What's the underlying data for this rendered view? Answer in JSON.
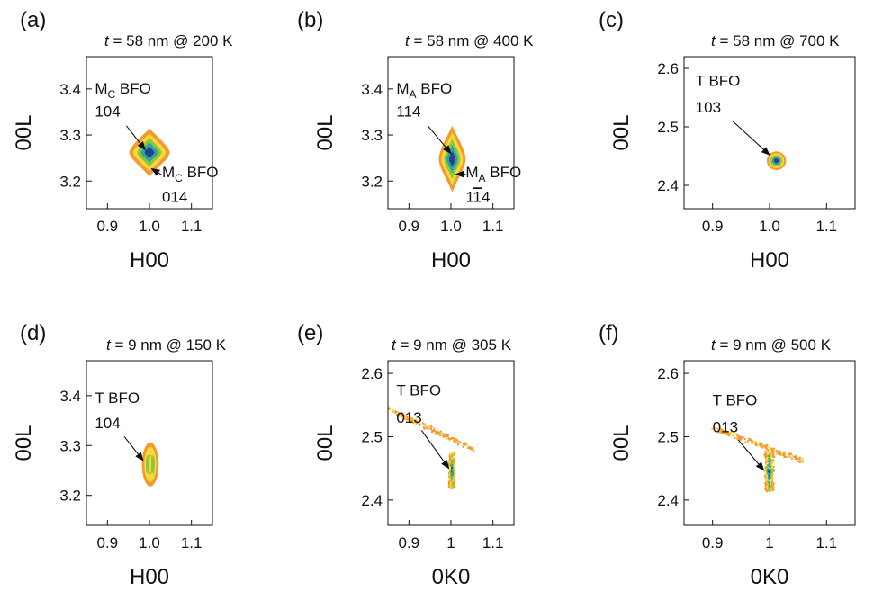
{
  "chart_data": [
    {
      "type": "heatmap",
      "panel_label": "(a)",
      "title": "t = 58 nm @ 200 K",
      "title_var": "t",
      "title_rest": " = 58 nm @ 200 K",
      "xlabel": "H00",
      "ylabel": "00L",
      "xlim": [
        0.85,
        1.15
      ],
      "ylim": [
        3.14,
        3.47
      ],
      "xticks": [
        0.9,
        1.0,
        1.1
      ],
      "xtick_labels": [
        "0.9",
        "1.0",
        "1.1"
      ],
      "yticks": [
        3.2,
        3.3,
        3.4
      ],
      "ytick_labels": [
        "3.2",
        "3.3",
        "3.4"
      ],
      "peaks": [
        {
          "x": 1.0,
          "y": 3.262,
          "rx": 0.048,
          "ry": 0.052,
          "shape": "diamond"
        }
      ],
      "annotations": [
        {
          "base": "M",
          "sub": "C",
          "rest": " BFO",
          "index": "104",
          "tx": 0.87,
          "ty": 3.39,
          "ix": 0.87,
          "iy": 3.34,
          "ax0": 0.945,
          "ay0": 3.32,
          "ax1": 0.99,
          "ay1": 3.268
        },
        {
          "base": "M",
          "sub": "C",
          "rest": " BFO",
          "index": "014",
          "tx": 1.03,
          "ty": 3.208,
          "ix": 1.03,
          "iy": 3.155,
          "ax0": 1.03,
          "ay0": 3.213,
          "ax1": 1.005,
          "ay1": 3.227
        }
      ]
    },
    {
      "type": "heatmap",
      "panel_label": "(b)",
      "title": "t = 58 nm @ 400 K",
      "title_var": "t",
      "title_rest": " = 58 nm @ 400 K",
      "xlabel": "H00",
      "ylabel": "00L",
      "xlim": [
        0.85,
        1.15
      ],
      "ylim": [
        3.14,
        3.47
      ],
      "xticks": [
        0.9,
        1.0,
        1.1
      ],
      "xtick_labels": [
        "0.9",
        "1.0",
        "1.1"
      ],
      "yticks": [
        3.2,
        3.3,
        3.4
      ],
      "ytick_labels": [
        "3.2",
        "3.3",
        "3.4"
      ],
      "peaks": [
        {
          "x": 1.003,
          "y": 3.248,
          "rx": 0.032,
          "ry": 0.072,
          "shape": "diamond"
        }
      ],
      "annotations": [
        {
          "base": "M",
          "sub": "A",
          "rest": " BFO",
          "index": "114",
          "tx": 0.87,
          "ty": 3.39,
          "ix": 0.87,
          "iy": 3.34,
          "ax0": 0.945,
          "ay0": 3.32,
          "ax1": 1.0,
          "ay1": 3.26
        },
        {
          "base": "M",
          "sub": "A",
          "rest": " BFO",
          "index": "1̄14",
          "index_parts": [
            "1",
            "1",
            "4"
          ],
          "index_bar": 1,
          "tx": 1.035,
          "ty": 3.208,
          "ix": 1.035,
          "iy": 3.155,
          "ax0": 1.035,
          "ay0": 3.215,
          "ax1": 1.012,
          "ay1": 3.215
        }
      ]
    },
    {
      "type": "heatmap",
      "panel_label": "(c)",
      "title": "t = 58 nm @ 700 K",
      "title_var": "t",
      "title_rest": " = 58 nm @ 700 K",
      "xlabel": "H00",
      "ylabel": "00L",
      "xlim": [
        0.85,
        1.15
      ],
      "ylim": [
        2.36,
        2.62
      ],
      "xticks": [
        0.9,
        1.0,
        1.1
      ],
      "xtick_labels": [
        "0.9",
        "1.0",
        "1.1"
      ],
      "yticks": [
        2.4,
        2.5,
        2.6
      ],
      "ytick_labels": [
        "2.4",
        "2.5",
        "2.6"
      ],
      "peaks": [
        {
          "x": 1.012,
          "y": 2.442,
          "rx": 0.017,
          "ry": 0.016,
          "shape": "ellipse"
        }
      ],
      "annotations": [
        {
          "text": "T BFO",
          "index": "103",
          "tx": 0.87,
          "ty": 2.57,
          "ix": 0.87,
          "iy": 2.525,
          "ax0": 0.935,
          "ay0": 2.51,
          "ax1": 1.0,
          "ay1": 2.452
        }
      ]
    },
    {
      "type": "heatmap",
      "panel_label": "(d)",
      "title": "t = 9 nm @ 150 K",
      "title_var": "t",
      "title_rest": "  = 9 nm @ 150 K",
      "xlabel": "H00",
      "ylabel": "00L",
      "xlim": [
        0.85,
        1.15
      ],
      "ylim": [
        3.14,
        3.47
      ],
      "xticks": [
        0.9,
        1.0,
        1.1
      ],
      "xtick_labels": [
        "0.9",
        "1.0",
        "1.1"
      ],
      "yticks": [
        3.2,
        3.3,
        3.4
      ],
      "ytick_labels": [
        "3.2",
        "3.3",
        "3.4"
      ],
      "peaks": [
        {
          "x": 1.002,
          "y": 3.262,
          "rx": 0.02,
          "ry": 0.044,
          "shape": "double"
        }
      ],
      "annotations": [
        {
          "text": "T BFO",
          "index": "104",
          "tx": 0.87,
          "ty": 3.385,
          "ix": 0.87,
          "iy": 3.335,
          "ax0": 0.94,
          "ay0": 3.318,
          "ax1": 0.985,
          "ay1": 3.27
        }
      ]
    },
    {
      "type": "heatmap",
      "panel_label": "(e)",
      "title": "t = 9 nm @ 305 K",
      "title_var": "t",
      "title_rest": " = 9 nm @ 305 K",
      "xlabel": "0K0",
      "ylabel": "00L",
      "xlim": [
        0.85,
        1.15
      ],
      "ylim": [
        2.36,
        2.62
      ],
      "xticks": [
        0.9,
        1.0,
        1.1
      ],
      "xtick_labels": [
        "0.9",
        "1",
        "1.1"
      ],
      "yticks": [
        2.4,
        2.5,
        2.6
      ],
      "ytick_labels": [
        "2.4",
        "2.5",
        "2.6"
      ],
      "peaks": [
        {
          "x": 1.0,
          "y": 2.447,
          "rx": 0.007,
          "ry": 0.028,
          "shape": "speckle"
        }
      ],
      "streaks": [
        {
          "x0": 0.85,
          "y0": 2.545,
          "x1": 1.05,
          "y1": 2.482
        }
      ],
      "annotations": [
        {
          "text": "T BFO",
          "index": "013",
          "tx": 0.87,
          "ty": 2.565,
          "ix": 0.87,
          "iy": 2.522,
          "ax0": 0.93,
          "ay0": 2.51,
          "ax1": 0.995,
          "ay1": 2.45
        }
      ]
    },
    {
      "type": "heatmap",
      "panel_label": "(f)",
      "title": "t = 9 nm @ 500 K",
      "title_var": "t",
      "title_rest": " = 9 nm @ 500 K",
      "xlabel": "0K0",
      "ylabel": "00L",
      "xlim": [
        0.85,
        1.15
      ],
      "ylim": [
        2.36,
        2.62
      ],
      "xticks": [
        0.9,
        1.0,
        1.1
      ],
      "xtick_labels": [
        "0.9",
        "1",
        "1.1"
      ],
      "yticks": [
        2.4,
        2.5,
        2.6
      ],
      "ytick_labels": [
        "2.4",
        "2.5",
        "2.6"
      ],
      "peaks": [
        {
          "x": 0.998,
          "y": 2.447,
          "rx": 0.008,
          "ry": 0.032,
          "shape": "speckle"
        }
      ],
      "streaks": [
        {
          "x0": 0.9,
          "y0": 2.515,
          "x1": 1.06,
          "y1": 2.462
        }
      ],
      "annotations": [
        {
          "text": "T BFO",
          "index": "013",
          "tx": 0.9,
          "ty": 2.55,
          "ix": 0.9,
          "iy": 2.507,
          "ax0": 0.945,
          "ay0": 2.495,
          "ax1": 0.99,
          "ay1": 2.447
        }
      ]
    }
  ],
  "colors": {
    "level_1": "#f29a2e",
    "level_2": "#f7d83a",
    "level_3": "#8cc63f",
    "level_4": "#2ea3a3",
    "level_5": "#2b3f8f",
    "axis": "#111111"
  }
}
